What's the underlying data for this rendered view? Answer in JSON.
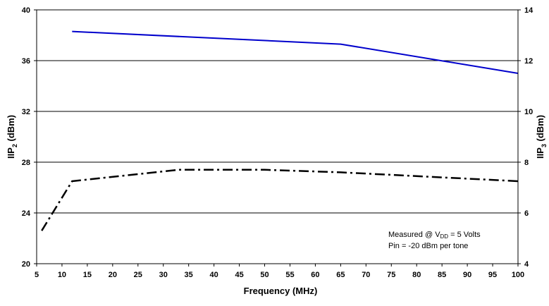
{
  "chart_data": {
    "type": "line",
    "xlabel": "Frequency (MHz)",
    "ylabel_left": {
      "main": "IIP",
      "sub": "2",
      "unit": " (dBm)"
    },
    "ylabel_right": {
      "main": "IIP",
      "sub": "3",
      "unit": " (dBm)"
    },
    "xlim": [
      5,
      100
    ],
    "ylim_left": [
      20,
      40
    ],
    "ylim_right": [
      4,
      14
    ],
    "x_ticks": [
      "5",
      "10",
      "15",
      "20",
      "25",
      "30",
      "35",
      "40",
      "45",
      "50",
      "55",
      "60",
      "65",
      "70",
      "75",
      "80",
      "85",
      "90",
      "95",
      "100"
    ],
    "y_ticks_left": [
      "20",
      "24",
      "28",
      "32",
      "36",
      "40"
    ],
    "y_ticks_right": [
      "4",
      "6",
      "8",
      "10",
      "12",
      "14"
    ],
    "grid": "horizontal",
    "annotation": {
      "line1_prefix": "Measured @ V",
      "line1_sub": "DD",
      "line1_suffix": " =  5  Volts",
      "line2": "Pin = -20 dBm per tone",
      "placement": "bottom-right"
    },
    "series": [
      {
        "axis": "left",
        "style": "solid",
        "color": "#0000cc",
        "x": [
          12,
          65,
          100
        ],
        "y": [
          38.3,
          37.3,
          35.0
        ]
      },
      {
        "axis": "right",
        "style": "dash-dot",
        "color": "#000000",
        "x": [
          6,
          12,
          33,
          50,
          65,
          100
        ],
        "y": [
          5.3,
          7.25,
          7.7,
          7.7,
          7.6,
          7.25
        ]
      }
    ]
  }
}
